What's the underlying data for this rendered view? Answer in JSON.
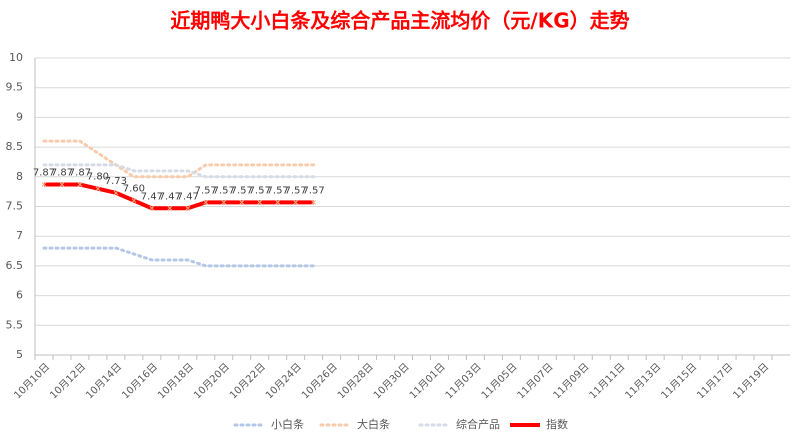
{
  "chart_data": {
    "type": "line",
    "title": "近期鸭大小白条及综合产品主流均价（元/KG）走势",
    "categories": [
      "10月10日",
      null,
      "10月12日",
      null,
      "10月14日",
      null,
      "10月16日",
      null,
      "10月18日",
      null,
      "10月20日",
      null,
      "10月22日",
      null,
      "10月24日",
      null,
      "10月26日",
      null,
      "10月28日",
      null,
      "10月30日",
      null,
      "11月01日",
      null,
      "11月03日",
      null,
      "11月05日",
      null,
      "11月07日",
      null,
      "11月09日",
      null,
      "11月11日",
      null,
      "11月13日",
      null,
      "11月15日",
      null,
      "11月17日",
      null,
      "11月19日",
      null
    ],
    "series": [
      {
        "name": "小白条",
        "color": "#b4c7e7",
        "dash": true,
        "values": [
          6.8,
          6.8,
          6.8,
          6.8,
          6.8,
          6.7,
          6.6,
          6.6,
          6.6,
          6.5,
          6.5,
          6.5,
          6.5,
          6.5,
          6.5,
          6.5,
          null,
          null,
          null,
          null,
          null,
          null,
          null,
          null,
          null,
          null,
          null,
          null,
          null,
          null,
          null,
          null,
          null,
          null,
          null,
          null,
          null,
          null,
          null,
          null,
          null,
          null
        ]
      },
      {
        "name": "大白条",
        "color": "#f8cbad",
        "dash": true,
        "values": [
          8.6,
          8.6,
          8.6,
          8.4,
          8.2,
          8.0,
          8.0,
          8.0,
          8.0,
          8.2,
          8.2,
          8.2,
          8.2,
          8.2,
          8.2,
          8.2,
          null,
          null,
          null,
          null,
          null,
          null,
          null,
          null,
          null,
          null,
          null,
          null,
          null,
          null,
          null,
          null,
          null,
          null,
          null,
          null,
          null,
          null,
          null,
          null,
          null,
          null
        ]
      },
      {
        "name": "综合产品",
        "color": "#d6dce5",
        "dash": true,
        "values": [
          8.2,
          8.2,
          8.2,
          8.2,
          8.2,
          8.1,
          8.1,
          8.1,
          8.1,
          8.0,
          8.0,
          8.0,
          8.0,
          8.0,
          8.0,
          8.0,
          null,
          null,
          null,
          null,
          null,
          null,
          null,
          null,
          null,
          null,
          null,
          null,
          null,
          null,
          null,
          null,
          null,
          null,
          null,
          null,
          null,
          null,
          null,
          null,
          null,
          null
        ]
      },
      {
        "name": "指数",
        "color": "#ff0000",
        "dash": false,
        "values": [
          7.87,
          7.87,
          7.87,
          7.8,
          7.73,
          7.6,
          7.47,
          7.47,
          7.47,
          7.57,
          7.57,
          7.57,
          7.57,
          7.57,
          7.57,
          7.57,
          null,
          null,
          null,
          null,
          null,
          null,
          null,
          null,
          null,
          null,
          null,
          null,
          null,
          null,
          null,
          null,
          null,
          null,
          null,
          null,
          null,
          null,
          null,
          null,
          null,
          null
        ],
        "value_labels": [
          "7.87",
          "7.87",
          "7.87",
          "7.80",
          "7.73",
          "7.60",
          "7.47",
          "7.47",
          "7.47",
          "7.57",
          "7.57",
          "7.57",
          "7.57",
          "7.57",
          "7.57",
          "7.57",
          null,
          null,
          null,
          null,
          null,
          null,
          null,
          null,
          null,
          null,
          null,
          null,
          null,
          null,
          null,
          null,
          null,
          null,
          null,
          null,
          null,
          null,
          null,
          null,
          null,
          null
        ]
      }
    ],
    "ylim": [
      5,
      10
    ],
    "yticks": [
      5,
      5.5,
      6,
      6.5,
      7,
      7.5,
      8,
      8.5,
      9,
      9.5,
      10
    ],
    "grid": true,
    "legend": "bottom"
  }
}
